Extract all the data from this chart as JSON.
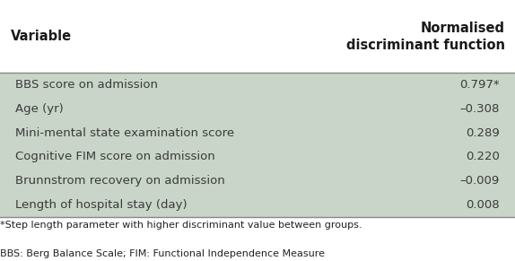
{
  "header_col1": "Variable",
  "header_col2": "Normalised\ndiscriminant function",
  "rows": [
    [
      "BBS score on admission",
      "0.797*"
    ],
    [
      "Age (yr)",
      "–0.308"
    ],
    [
      "Mini-mental state examination score",
      "0.289"
    ],
    [
      "Cognitive FIM score on admission",
      "0.220"
    ],
    [
      "Brunnstrom recovery on admission",
      "–0.009"
    ],
    [
      "Length of hospital stay (day)",
      "0.008"
    ]
  ],
  "footnote1": "*Step length parameter with higher discriminant value between groups.",
  "footnote2": "BBS: Berg Balance Scale; FIM: Functional Independence Measure",
  "bg_color": "#c8d5c8",
  "header_bg": "#ffffff",
  "text_color": "#3a3a3a",
  "header_text_color": "#1a1a1a",
  "line_color": "#888888",
  "font_size": 9.5,
  "header_font_size": 10.5
}
